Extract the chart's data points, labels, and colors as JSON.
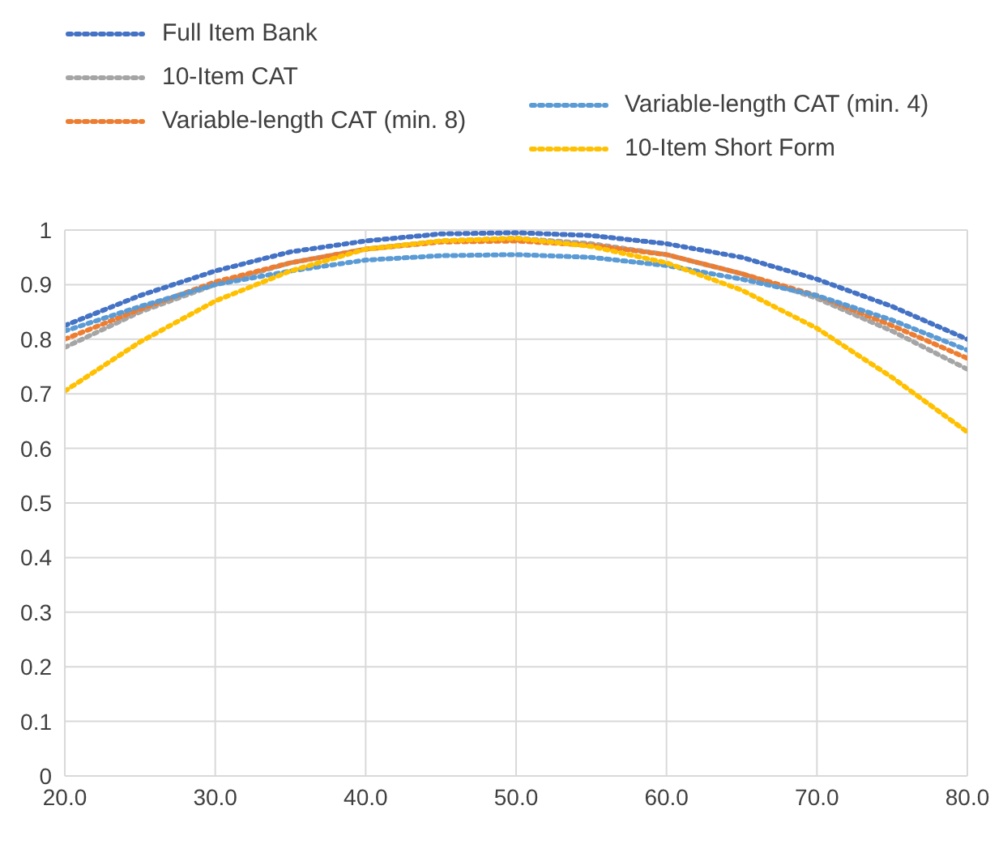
{
  "chart_data": {
    "type": "line",
    "x": [
      20,
      25,
      30,
      35,
      40,
      45,
      50,
      55,
      60,
      65,
      70,
      75,
      80
    ],
    "series": [
      {
        "name": "Full Item Bank",
        "color": "#4472c4",
        "values": [
          0.825,
          0.88,
          0.925,
          0.96,
          0.98,
          0.993,
          0.995,
          0.99,
          0.975,
          0.95,
          0.91,
          0.86,
          0.8
        ]
      },
      {
        "name": "10-Item CAT",
        "color": "#a5a5a5",
        "values": [
          0.785,
          0.85,
          0.9,
          0.94,
          0.965,
          0.98,
          0.985,
          0.975,
          0.955,
          0.92,
          0.875,
          0.815,
          0.745
        ]
      },
      {
        "name": "Variable-length CAT (min. 8)",
        "color": "#ed7d31",
        "values": [
          0.8,
          0.855,
          0.905,
          0.94,
          0.965,
          0.978,
          0.98,
          0.972,
          0.955,
          0.92,
          0.88,
          0.825,
          0.765
        ]
      },
      {
        "name": "Variable-length CAT (min. 4)",
        "color": "#5b9bd5",
        "values": [
          0.815,
          0.86,
          0.9,
          0.925,
          0.945,
          0.953,
          0.955,
          0.95,
          0.935,
          0.91,
          0.88,
          0.835,
          0.78
        ]
      },
      {
        "name": "10-Item Short Form",
        "color": "#ffc000",
        "values": [
          0.705,
          0.795,
          0.87,
          0.925,
          0.965,
          0.98,
          0.985,
          0.97,
          0.94,
          0.89,
          0.82,
          0.73,
          0.63
        ]
      }
    ],
    "xlim": [
      20,
      80
    ],
    "xticks": [
      {
        "value": 20,
        "label": "20.0"
      },
      {
        "value": 30,
        "label": "30.0"
      },
      {
        "value": 40,
        "label": "40.0"
      },
      {
        "value": 50,
        "label": "50.0"
      },
      {
        "value": 60,
        "label": "60.0"
      },
      {
        "value": 70,
        "label": "70.0"
      },
      {
        "value": 80,
        "label": "80.0"
      }
    ],
    "ylim": [
      0,
      1
    ],
    "yticks": [
      0,
      0.1,
      0.2,
      0.3,
      0.4,
      0.5,
      0.6,
      0.7,
      0.8,
      0.9,
      1
    ],
    "grid": true,
    "legend": "top",
    "marker": "none",
    "line_style": "dotted"
  }
}
